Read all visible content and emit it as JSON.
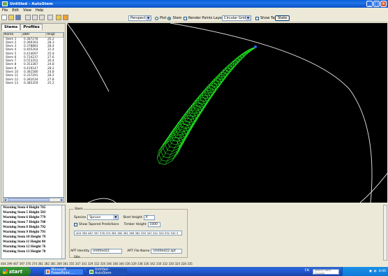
{
  "window": {
    "title": "Untitled - AutoStem"
  },
  "menu": [
    "File",
    "Edit",
    "View",
    "Help"
  ],
  "toolbar": {
    "view_mode": "Perspective",
    "plot_label": "Plot",
    "stem_label": "Stem",
    "render_points_label": "Render Points Layer",
    "grid_mode": "Circular Grid",
    "show_tapering_label": "Show Tapering",
    "state_button": "State"
  },
  "left_panel": {
    "tabs": [
      "Stems",
      "Profiles"
    ],
    "columns": [
      "Name",
      "DBH",
      "Heigt"
    ],
    "rows": [
      [
        "Stem 1",
        "0.387278",
        "26.2"
      ],
      [
        "Stem 2",
        "0.369393",
        "28.3"
      ],
      [
        "Stem 3",
        "0.378883",
        "28.4"
      ],
      [
        "Stem 4",
        "0.405264",
        "31.4"
      ],
      [
        "Stem 5",
        "0.414697",
        "25.9"
      ],
      [
        "Stem 6",
        "0.724237",
        "27.6"
      ],
      [
        "Stem 7",
        "0.553352",
        "30.4"
      ],
      [
        "Stem 8",
        "0.353387",
        "24.8"
      ],
      [
        "Stem 9",
        "0.419147",
        "28.2"
      ],
      [
        "Stem 10",
        "0.381580",
        "24.8"
      ],
      [
        "Stem 11",
        "0.337291",
        "28.2"
      ],
      [
        "Stem 12",
        "0.381034",
        "27.8"
      ],
      [
        "Stem 13",
        "0.385359",
        "25.2"
      ]
    ]
  },
  "warnings": [
    "Warning Stem 4 Height 765",
    "Warning Stem 5 Height 503",
    "Warning Stem 6 Height 779",
    "Warning Stem 7 Height 768",
    "Warning Stem 8 Height 792",
    "Warning Stem 9 Height 791",
    "Warning Stem 10 Height 79",
    "Warning Stem 11 Height 80",
    "Warning Stem 12 Height 76",
    "Warning Stem 13 Height 78"
  ],
  "stem_panel": {
    "group_label": "Stem",
    "species_label": "Species",
    "species_value": "Spruce",
    "start_height_label": "Start Height",
    "start_height_value": "0",
    "show_tapered_label": "Show Tapered Predictions",
    "timber_height_label": "Timber Height",
    "timber_height_value": "1000",
    "values_field": "404 399 467 397 376 374 381 382 381 369 361 355 347 341 329 332 330 3",
    "apt_identity_label": "APT Identity",
    "apt_identity_value": "Untitled22",
    "apt_file_label": "APT File Name",
    "apt_file_value": "Untitled22.apt",
    "site_label": "Site"
  },
  "status_values": "404 399 467 397 376 374 381 382 381 369 361 355 347 341 329 332 330 346 348 340 336 329 338 336 342 330 332 330 324 328 335",
  "taskbar": {
    "start_label": "start",
    "tasks": [
      "Microsoft PowerPoint ...",
      "Untitled - AutoStem"
    ],
    "language": "EN",
    "search_placeholder": "Search with Google",
    "clock": "8:06"
  },
  "colors": {
    "stem_wire": "#22ee22",
    "grid_line": "#d8d8d8",
    "view_bg": "#000000"
  }
}
